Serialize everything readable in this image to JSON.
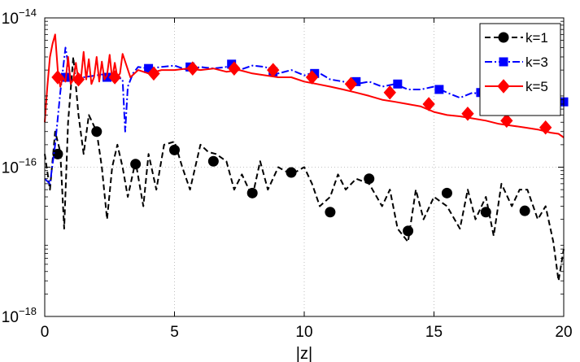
{
  "chart_data": {
    "type": "line",
    "title": "",
    "xlabel": "|z|",
    "ylabel": "",
    "xlim": [
      0,
      20
    ],
    "ylim": [
      1e-18,
      1e-14
    ],
    "y_scale": "log",
    "grid": true,
    "legend_position": "top-right",
    "x_ticks": [
      0,
      5,
      10,
      15,
      20
    ],
    "x_tick_labels": [
      "0",
      "5",
      "10",
      "15",
      "20"
    ],
    "y_ticks": [
      1e-18,
      1e-16,
      1e-14
    ],
    "y_tick_labels": [
      {
        "base": "10",
        "exp": "−18"
      },
      {
        "base": "10",
        "exp": "−16"
      },
      {
        "base": "10",
        "exp": "−14"
      }
    ],
    "series": [
      {
        "name": "k=1",
        "color": "#000000",
        "line_style": "dashed",
        "marker": "circle",
        "line_x": [
          0.0,
          0.2,
          0.4,
          0.6,
          0.75,
          0.9,
          1.1,
          1.3,
          1.5,
          1.7,
          2.0,
          2.2,
          2.4,
          2.6,
          2.8,
          3.0,
          3.2,
          3.5,
          3.8,
          4.0,
          4.3,
          4.6,
          5.0,
          5.3,
          5.6,
          6.0,
          6.3,
          6.6,
          7.0,
          7.3,
          7.6,
          8.0,
          8.3,
          8.6,
          9.0,
          9.5,
          10.0,
          10.3,
          10.6,
          11.0,
          11.3,
          11.6,
          12.0,
          12.5,
          13.0,
          13.3,
          13.6,
          14.0,
          14.3,
          14.6,
          15.0,
          15.5,
          16.0,
          16.3,
          16.6,
          17.0,
          17.3,
          17.6,
          18.0,
          18.3,
          18.6,
          19.0,
          19.3,
          19.6,
          19.8,
          20.0
        ],
        "line_y": [
          1.5e-16,
          5e-17,
          3e-16,
          1.6e-16,
          1.5e-17,
          4e-16,
          3e-15,
          5e-16,
          1.5e-16,
          5e-16,
          3e-16,
          1e-16,
          2e-17,
          1e-16,
          2e-16,
          1e-16,
          4e-17,
          1.2e-16,
          3e-17,
          1.5e-16,
          5e-17,
          2e-16,
          2.2e-16,
          1e-16,
          5e-17,
          2e-16,
          1.6e-16,
          1.5e-16,
          1.2e-16,
          5e-17,
          8e-17,
          4e-17,
          1.2e-16,
          5e-17,
          1e-16,
          8e-17,
          1e-16,
          6e-17,
          3e-17,
          4e-17,
          8e-17,
          5e-17,
          7e-17,
          6e-17,
          3e-17,
          5e-17,
          1.5e-17,
          1e-17,
          5e-17,
          2e-17,
          4e-17,
          3e-17,
          1.5e-17,
          5e-17,
          2e-17,
          4e-17,
          1.2e-17,
          6e-17,
          3e-17,
          5e-17,
          5e-17,
          2e-17,
          3e-17,
          1e-17,
          3e-18,
          8e-18
        ],
        "marker_x": [
          0.5,
          2.0,
          3.5,
          5.0,
          6.5,
          8.0,
          9.5,
          11.0,
          12.5,
          14.0,
          15.5,
          17.0,
          18.5
        ],
        "marker_y": [
          1.5e-16,
          3e-16,
          1.1e-16,
          1.7e-16,
          1.2e-16,
          4.5e-17,
          8.5e-17,
          2.5e-17,
          7e-17,
          1.4e-17,
          4.5e-17,
          2.5e-17,
          2.6e-17
        ]
      },
      {
        "name": "k=3",
        "color": "#0000ff",
        "line_style": "dash-dot",
        "marker": "square",
        "line_x": [
          0.0,
          0.2,
          0.4,
          0.6,
          0.8,
          1.0,
          1.2,
          1.5,
          2.0,
          2.5,
          3.0,
          3.1,
          3.2,
          3.4,
          3.6,
          4.0,
          4.5,
          5.0,
          5.5,
          6.0,
          6.5,
          7.0,
          7.5,
          8.0,
          8.5,
          9.0,
          9.5,
          10.0,
          10.5,
          11.0,
          11.5,
          12.0,
          12.5,
          13.0,
          13.5,
          14.0,
          14.5,
          15.0,
          15.5,
          16.0,
          16.5,
          17.0,
          17.5,
          18.0,
          18.5,
          19.0,
          19.5,
          20.0
        ],
        "line_y": [
          7e-17,
          6e-17,
          2e-16,
          1e-15,
          4e-15,
          1.5e-15,
          1.5e-15,
          1.6e-15,
          1.7e-15,
          1.8e-15,
          1.5e-15,
          3e-16,
          1.2e-15,
          1.8e-15,
          2.2e-15,
          2.1e-15,
          2.2e-15,
          2.3e-15,
          2e-15,
          2.2e-15,
          2.1e-15,
          2.2e-15,
          2e-15,
          2.3e-15,
          2.2e-15,
          1.8e-15,
          2e-15,
          1.7e-15,
          1.9e-15,
          1.5e-15,
          1.4e-15,
          1.3e-15,
          1.4e-15,
          1.2e-15,
          1.3e-15,
          1.1e-15,
          1.1e-15,
          1.2e-15,
          1e-15,
          8.5e-16,
          1e-15,
          9e-16,
          8.5e-16,
          9e-16,
          7e-16,
          8.5e-16,
          7e-16,
          7.5e-16
        ],
        "marker_x": [
          0.8,
          2.4,
          4.0,
          5.6,
          7.2,
          8.8,
          10.4,
          12.0,
          13.6,
          15.2,
          16.8,
          18.4,
          20.0
        ],
        "marker_y": [
          1.6e-15,
          1.6e-15,
          2.1e-15,
          2.2e-15,
          2.4e-15,
          1.9e-15,
          1.8e-15,
          1.4e-15,
          1.3e-15,
          1.1e-15,
          1e-15,
          8e-16,
          7.5e-16
        ]
      },
      {
        "name": "k=5",
        "color": "#ff0000",
        "line_style": "solid",
        "marker": "diamond",
        "line_x": [
          0.0,
          0.1,
          0.2,
          0.3,
          0.4,
          0.5,
          0.6,
          0.7,
          0.8,
          0.9,
          1.0,
          1.1,
          1.2,
          1.3,
          1.4,
          1.5,
          1.6,
          1.7,
          1.8,
          1.9,
          2.0,
          2.1,
          2.2,
          2.3,
          2.4,
          2.5,
          2.6,
          2.7,
          2.8,
          2.9,
          3.0,
          3.3,
          3.6,
          4.0,
          4.5,
          5.0,
          5.5,
          6.0,
          6.5,
          7.0,
          7.5,
          8.0,
          8.5,
          9.0,
          9.5,
          10.0,
          10.5,
          11.0,
          11.5,
          12.0,
          12.5,
          13.0,
          13.5,
          14.0,
          14.5,
          15.0,
          15.5,
          16.0,
          16.5,
          17.0,
          17.5,
          18.0,
          18.5,
          19.0,
          19.5,
          19.8,
          20.0
        ],
        "line_y": [
          4e-16,
          1.2e-15,
          3e-15,
          4.5e-15,
          6e-15,
          2e-15,
          1.2e-15,
          1.6e-15,
          1.4e-15,
          3e-15,
          1.3e-15,
          1.5e-15,
          2.5e-15,
          1.4e-15,
          1.6e-15,
          3.5e-15,
          1.5e-15,
          2.8e-15,
          1.3e-15,
          1.6e-15,
          3e-15,
          1.4e-15,
          2.6e-15,
          1.5e-15,
          1.7e-15,
          3.2e-15,
          1.5e-15,
          2.5e-15,
          1.6e-15,
          1.8e-15,
          3.3e-15,
          1.6e-15,
          2e-15,
          1.8e-15,
          2e-15,
          2e-15,
          2.1e-15,
          2e-15,
          2.1e-15,
          1.9e-15,
          2e-15,
          1.8e-15,
          1.7e-15,
          1.6e-15,
          1.6e-15,
          1.4e-15,
          1.3e-15,
          1.2e-15,
          1.1e-15,
          1e-15,
          9e-16,
          8e-16,
          7.5e-16,
          7e-16,
          6.5e-16,
          5.5e-16,
          5e-16,
          4.8e-16,
          4.5e-16,
          4.2e-16,
          3.8e-16,
          3.6e-16,
          3.4e-16,
          3.2e-16,
          2.9e-16,
          2.8e-16,
          2.5e-16
        ],
        "marker_x": [
          0.5,
          1.3,
          2.7,
          4.2,
          5.7,
          7.3,
          8.8,
          10.3,
          11.8,
          13.3,
          14.8,
          16.3,
          17.8,
          19.3
        ],
        "marker_y": [
          1.6e-15,
          1.5e-15,
          1.6e-15,
          1.8e-15,
          2.1e-15,
          2.1e-15,
          2e-15,
          1.6e-15,
          1.3e-15,
          1e-15,
          7e-16,
          5.2e-16,
          4.2e-16,
          3.4e-16
        ]
      }
    ]
  }
}
